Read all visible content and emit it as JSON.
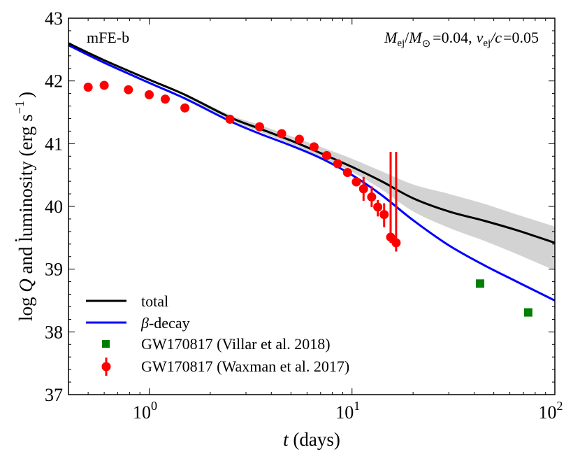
{
  "chart_data": {
    "type": "line",
    "title": "",
    "annotation_left": "mFE-b",
    "annotation_right": "M_ej/M_⊙ = 0.04, v_ej/c = 0.05",
    "annotation_right_parts": {
      "m": "M",
      "ej1": "ej",
      "slash1": "/",
      "msun": "M",
      "sun": "⊙",
      "eq1": "=0.04,",
      "v": "v",
      "ej2": "ej",
      "slash2": "/c",
      "eq2": "=0.05"
    },
    "xlabel": "t (days)",
    "xlabel_parts": {
      "var": "t",
      "unit": " (days)"
    },
    "ylabel": "log Q̇ and luminosity (erg s^-1)",
    "ylabel_parts": {
      "pre": "log ",
      "q": "Q",
      "mid": " and luminosity (erg s",
      "sup": "−1",
      "post": ")"
    },
    "xscale": "log",
    "xlim": [
      0.4,
      100
    ],
    "ylim": [
      37,
      43
    ],
    "grid": false,
    "x_ticks": [
      {
        "value": 1,
        "base": "10",
        "exp": "0"
      },
      {
        "value": 10,
        "base": "10",
        "exp": "1"
      },
      {
        "value": 100,
        "base": "10",
        "exp": "2"
      }
    ],
    "y_ticks": [
      "37",
      "38",
      "39",
      "40",
      "41",
      "42",
      "43"
    ],
    "legend_position": "lower left",
    "legend": [
      {
        "label": "total",
        "kind": "line",
        "color": "#000000"
      },
      {
        "label": "β-decay",
        "kind": "line",
        "color": "#0000ff",
        "greek": "β",
        "rest": "-decay"
      },
      {
        "label": "GW170817 (Villar et al. 2018)",
        "kind": "square",
        "color": "#008000"
      },
      {
        "label": "GW170817 (Waxman et al. 2017)",
        "kind": "errorbar",
        "color": "#ff0000"
      }
    ],
    "series": [
      {
        "name": "total",
        "color": "#000000",
        "x": [
          0.4,
          0.6,
          1.0,
          1.5,
          2.5,
          3.5,
          5.0,
          7.0,
          10.0,
          14.0,
          20.0,
          30.0,
          45.0,
          65.0,
          100.0
        ],
        "y": [
          42.6,
          42.33,
          42.02,
          41.78,
          41.42,
          41.24,
          41.05,
          40.85,
          40.63,
          40.4,
          40.13,
          39.92,
          39.77,
          39.62,
          39.42
        ]
      },
      {
        "name": "β-decay",
        "color": "#0000ff",
        "x": [
          0.4,
          0.6,
          1.0,
          1.5,
          2.5,
          3.5,
          5.0,
          7.0,
          10.0,
          14.0,
          20.0,
          30.0,
          45.0,
          65.0,
          100.0
        ],
        "y": [
          42.57,
          42.29,
          41.97,
          41.72,
          41.36,
          41.16,
          40.97,
          40.77,
          40.5,
          40.18,
          39.78,
          39.38,
          39.06,
          38.8,
          38.5
        ]
      },
      {
        "name": "total uncertainty band",
        "color": "#d3d3d3",
        "x": [
          1.5,
          2.5,
          3.5,
          5.0,
          7.0,
          10.0,
          14.0,
          20.0,
          30.0,
          45.0,
          65.0,
          100.0
        ],
        "y_upper": [
          41.8,
          41.46,
          41.3,
          41.12,
          40.95,
          40.76,
          40.56,
          40.35,
          40.2,
          40.04,
          39.87,
          39.68
        ],
        "y_lower": [
          41.75,
          41.38,
          41.19,
          40.99,
          40.78,
          40.55,
          40.27,
          39.92,
          39.66,
          39.45,
          39.24,
          38.98
        ]
      },
      {
        "name": "GW170817 (Villar et al. 2018)",
        "type": "scatter",
        "marker": "square",
        "color": "#008000",
        "x": [
          42.8,
          73.9
        ],
        "y": [
          38.77,
          38.31
        ]
      },
      {
        "name": "GW170817 (Waxman et al. 2017)",
        "type": "errorbar",
        "marker": "circle",
        "color": "#ff0000",
        "x": [
          0.5,
          0.6,
          0.79,
          1.0,
          1.2,
          1.5,
          2.5,
          3.5,
          4.5,
          5.5,
          6.5,
          7.5,
          8.5,
          9.5,
          10.5,
          11.4,
          12.5,
          13.4,
          14.4,
          15.5,
          16.5
        ],
        "y": [
          41.9,
          41.93,
          41.86,
          41.78,
          41.71,
          41.57,
          41.39,
          41.27,
          41.16,
          41.07,
          40.95,
          40.81,
          40.68,
          40.54,
          40.39,
          40.28,
          40.15,
          39.99,
          39.87,
          39.51,
          39.42
        ],
        "y_err_upper": [
          41.92,
          41.99,
          41.88,
          41.8,
          41.73,
          41.59,
          41.41,
          41.29,
          41.18,
          41.09,
          40.97,
          40.83,
          40.7,
          40.56,
          40.44,
          40.47,
          40.32,
          40.1,
          40.05,
          40.87,
          40.87
        ],
        "y_err_lower": [
          41.88,
          41.87,
          41.84,
          41.76,
          41.69,
          41.55,
          41.37,
          41.25,
          41.14,
          41.05,
          40.93,
          40.79,
          40.66,
          40.52,
          40.34,
          40.09,
          39.99,
          39.84,
          39.67,
          39.42,
          39.28
        ]
      }
    ]
  }
}
